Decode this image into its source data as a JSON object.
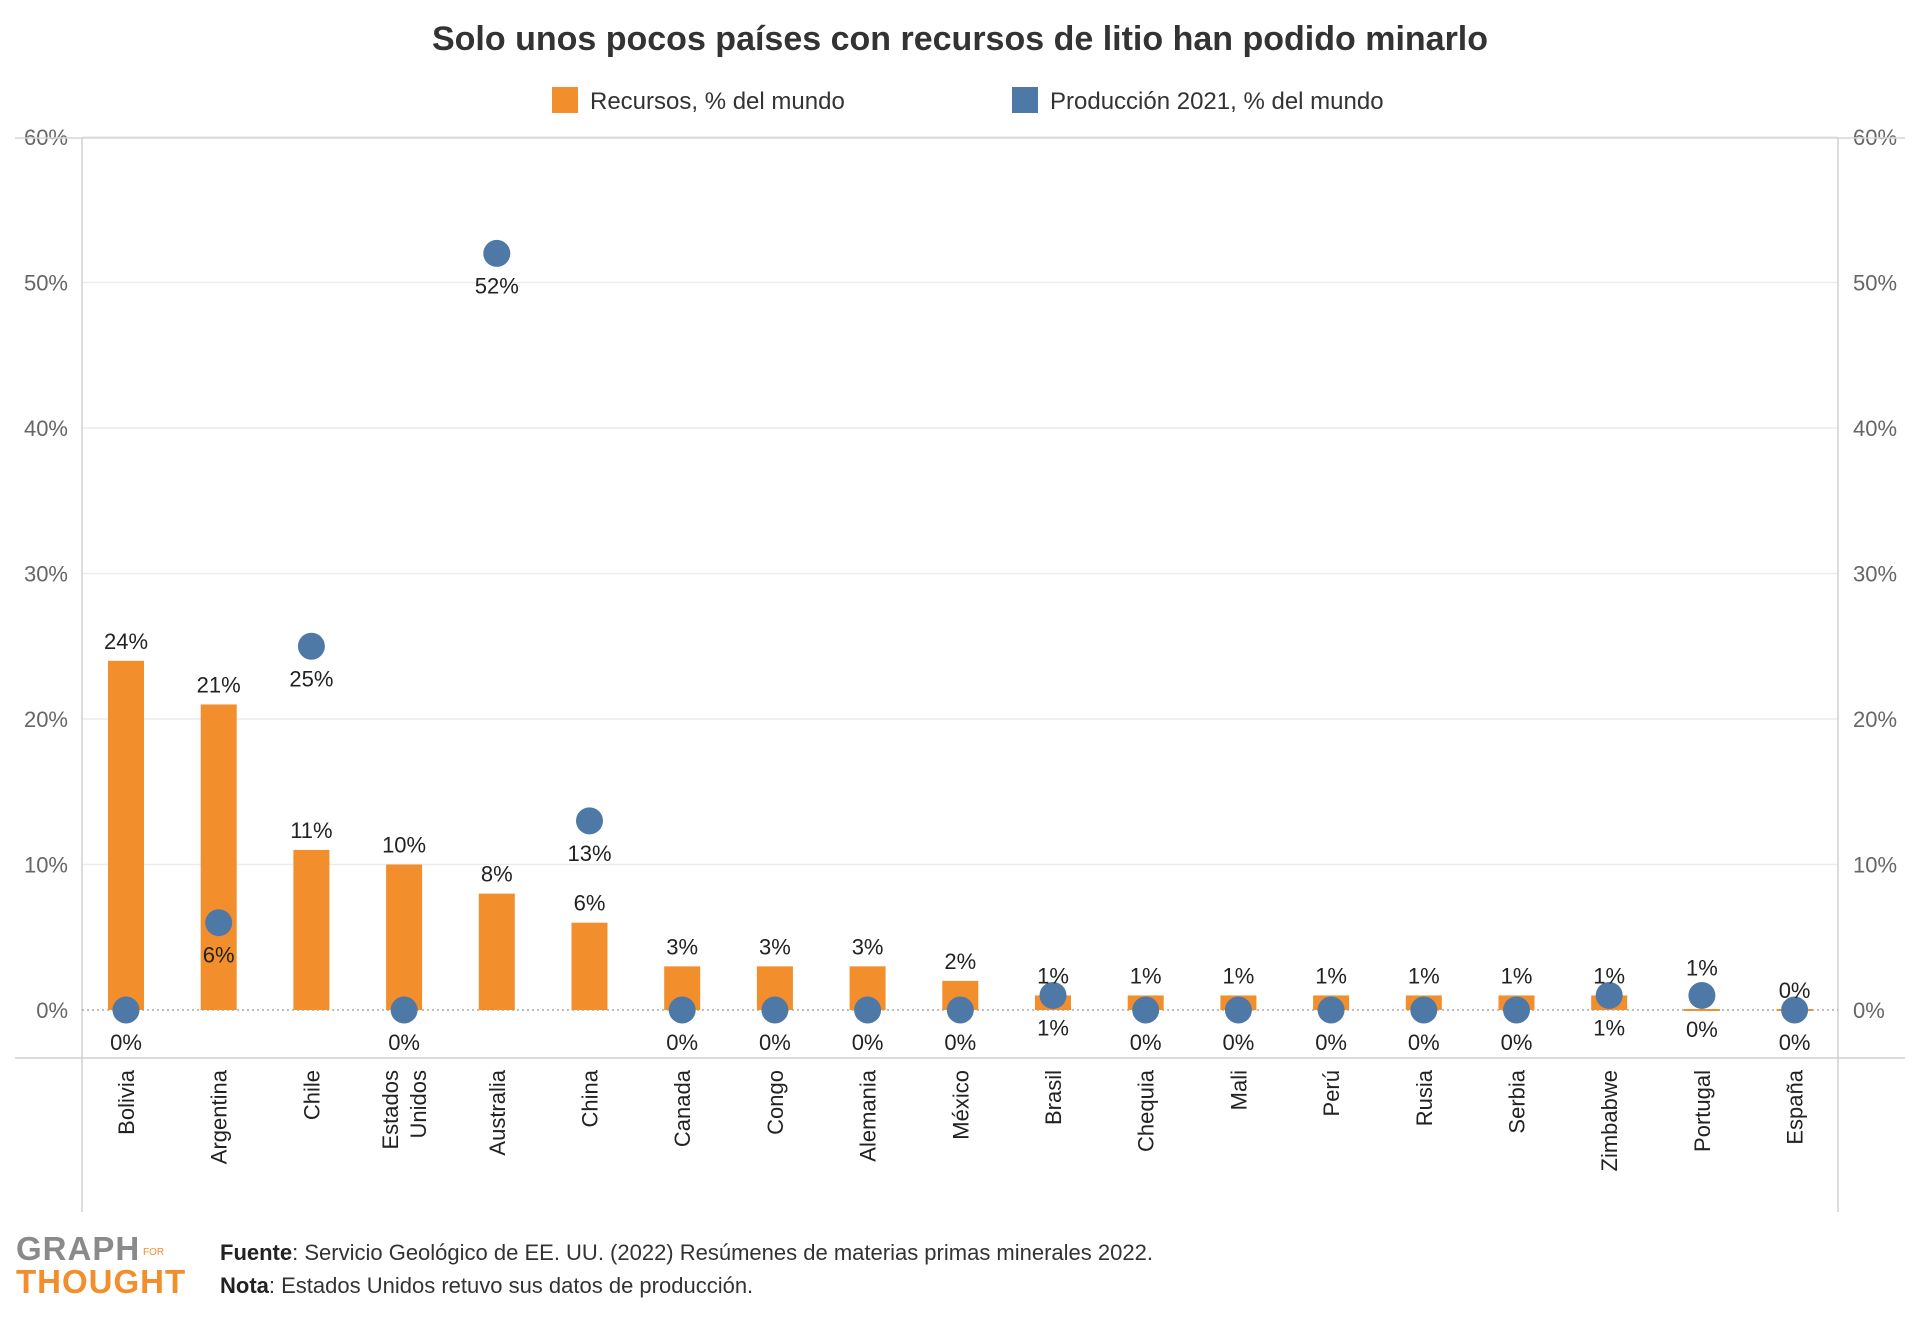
{
  "chart_data": {
    "type": "bar",
    "title": "Solo unos pocos países con recursos de litio han podido minarlo",
    "categories": [
      "Bolivia",
      "Argentina",
      "Chile",
      "Estados Unidos",
      "Australia",
      "China",
      "Canada",
      "Congo",
      "Alemania",
      "México",
      "Brasil",
      "Chequia",
      "Mali",
      "Perú",
      "Rusia",
      "Serbia",
      "Zimbabwe",
      "Portugal",
      "España"
    ],
    "category_label_lines": [
      [
        "Bolivia"
      ],
      [
        "Argentina"
      ],
      [
        "Chile"
      ],
      [
        "Estados",
        "Unidos"
      ],
      [
        "Australia"
      ],
      [
        "China"
      ],
      [
        "Canada"
      ],
      [
        "Congo"
      ],
      [
        "Alemania"
      ],
      [
        "México"
      ],
      [
        "Brasil"
      ],
      [
        "Chequia"
      ],
      [
        "Mali"
      ],
      [
        "Perú"
      ],
      [
        "Rusia"
      ],
      [
        "Serbia"
      ],
      [
        "Zimbabwe"
      ],
      [
        "Portugal"
      ],
      [
        "España"
      ]
    ],
    "series": [
      {
        "name": "Recursos, % del mundo",
        "type": "bar",
        "color": "#f28e2b",
        "values": [
          24,
          21,
          11,
          10,
          8,
          6,
          3,
          3,
          3,
          2,
          1,
          1,
          1,
          1,
          1,
          1,
          1,
          0,
          0
        ],
        "labels": [
          "24%",
          "21%",
          "11%",
          "10%",
          "8%",
          "6%",
          "3%",
          "3%",
          "3%",
          "2%",
          "1%",
          "1%",
          "1%",
          "1%",
          "1%",
          "1%",
          "1%",
          "0%",
          "0%"
        ]
      },
      {
        "name": "Producción 2021, % del mundo",
        "type": "scatter",
        "color": "#4e79a7",
        "values": [
          0,
          6,
          25,
          0,
          52,
          13,
          0,
          0,
          0,
          0,
          1,
          0,
          0,
          0,
          0,
          0,
          1,
          1,
          0
        ],
        "labels": [
          "0%",
          "6%",
          "25%",
          "0%",
          "52%",
          "13%",
          "0%",
          "0%",
          "0%",
          "0%",
          "1%",
          "0%",
          "0%",
          "0%",
          "0%",
          "0%",
          "1%",
          "1%",
          "0%"
        ]
      }
    ],
    "y_ticks": [
      0,
      10,
      20,
      30,
      40,
      50,
      60
    ],
    "y_tick_labels": [
      "0%",
      "10%",
      "20%",
      "30%",
      "40%",
      "50%",
      "60%"
    ],
    "ylim": [
      -3,
      60
    ],
    "grid": true,
    "legend": "top"
  },
  "footer": {
    "source_label": "Fuente",
    "source_text": ": Servicio Geológico de EE. UU. (2022) Resúmenes de materias primas minerales 2022.",
    "note_label": "Nota",
    "note_text": ": Estados Unidos retuvo sus datos de producción."
  },
  "logo": {
    "line1": "GRAPH",
    "line2": "THOUGHT",
    "small": "FOR"
  }
}
